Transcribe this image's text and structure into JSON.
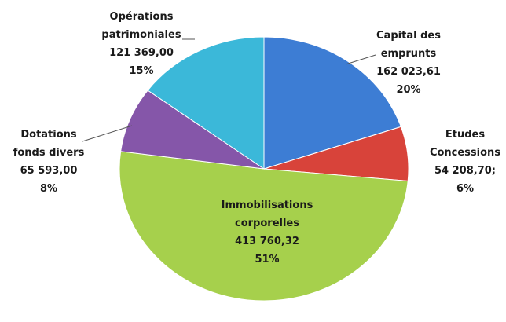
{
  "chart_data": {
    "type": "pie",
    "categories": [
      "Capital des emprunts",
      "Etudes Concessions",
      "Immobilisations corporelles",
      "Dotations fonds divers",
      "Opérations patrimoniales"
    ],
    "values": [
      162023.61,
      54208.7,
      413760.32,
      65593.0,
      121369.0
    ],
    "value_labels": [
      "162 023,61",
      "54 208,70;",
      "413 760,32",
      "65 593,00",
      "121 369,00"
    ],
    "percent_labels": [
      "20%",
      "6%",
      "51%",
      "8%",
      "15%"
    ],
    "colors": [
      "#3d7dd4",
      "#d8433a",
      "#a6d04c",
      "#8556a9",
      "#3bb8d9"
    ]
  }
}
